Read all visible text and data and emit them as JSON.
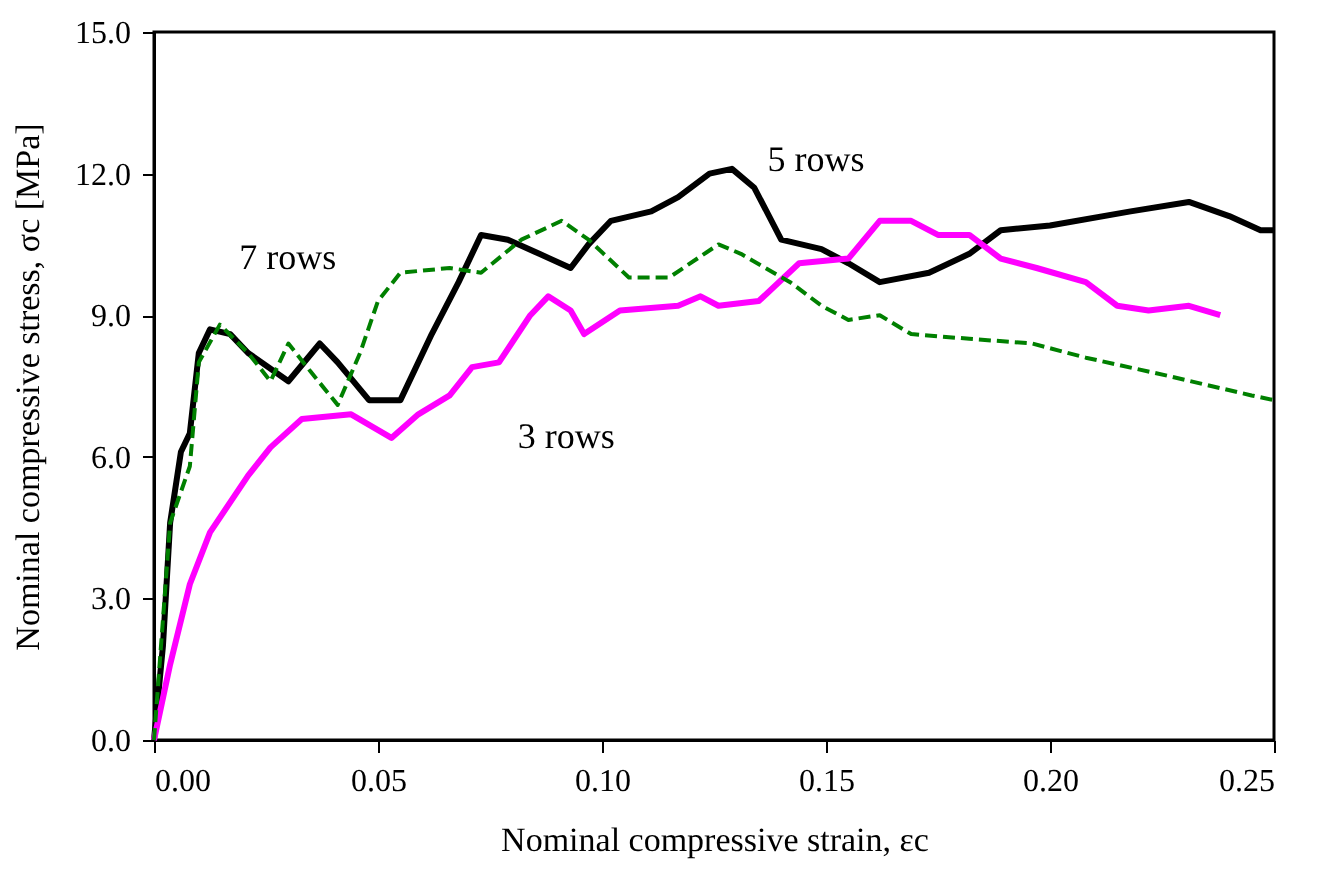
{
  "chart_data": {
    "type": "line",
    "xlabel": "Nominal compressive strain, εc",
    "ylabel": "Nominal compressive stress, σc [MPa]",
    "xlim": [
      0,
      0.25
    ],
    "ylim": [
      0,
      15
    ],
    "xticks": [
      {
        "value": 0,
        "label": "0.00"
      },
      {
        "value": 0.05,
        "label": "0.05"
      },
      {
        "value": 0.1,
        "label": "0.10"
      },
      {
        "value": 0.15,
        "label": "0.15"
      },
      {
        "value": 0.2,
        "label": "0.20"
      },
      {
        "value": 0.25,
        "label": "0.25"
      }
    ],
    "yticks": [
      {
        "value": 0,
        "label": "0.0"
      },
      {
        "value": 3,
        "label": "3.0"
      },
      {
        "value": 6,
        "label": "6.0"
      },
      {
        "value": 9,
        "label": "9.0"
      },
      {
        "value": 12,
        "label": "12.0"
      },
      {
        "value": 15,
        "label": "15.0"
      }
    ],
    "grid": false,
    "marker": "none",
    "series": [
      {
        "name": "5 rows",
        "color": "#000000",
        "line_style": "solid",
        "x": [
          0,
          0.002,
          0.0036,
          0.006,
          0.008,
          0.01,
          0.0125,
          0.017,
          0.021,
          0.03,
          0.037,
          0.041,
          0.048,
          0.055,
          0.062,
          0.068,
          0.073,
          0.079,
          0.086,
          0.093,
          0.097,
          0.102,
          0.111,
          0.117,
          0.124,
          0.129,
          0.134,
          0.14,
          0.149,
          0.155,
          0.162,
          0.173,
          0.182,
          0.189,
          0.2,
          0.218,
          0.231,
          0.24,
          0.247,
          0.25
        ],
        "values": [
          0,
          2.0,
          4.6,
          6.1,
          6.5,
          8.2,
          8.7,
          8.6,
          8.2,
          7.6,
          8.4,
          8.0,
          7.2,
          7.2,
          8.6,
          9.7,
          10.7,
          10.6,
          10.3,
          10.0,
          10.5,
          11.0,
          11.2,
          11.5,
          12.0,
          12.1,
          11.7,
          10.6,
          10.4,
          10.1,
          9.7,
          9.9,
          10.3,
          10.8,
          10.9,
          11.2,
          11.4,
          11.1,
          10.8,
          10.8
        ]
      },
      {
        "name": "3 rows",
        "color": "#ff00ff",
        "line_style": "solid",
        "x": [
          0,
          0.0036,
          0.008,
          0.0125,
          0.021,
          0.026,
          0.033,
          0.044,
          0.053,
          0.059,
          0.066,
          0.071,
          0.077,
          0.084,
          0.088,
          0.093,
          0.096,
          0.104,
          0.117,
          0.122,
          0.126,
          0.135,
          0.144,
          0.155,
          0.162,
          0.169,
          0.175,
          0.182,
          0.189,
          0.197,
          0.208,
          0.215,
          0.222,
          0.231,
          0.238
        ],
        "values": [
          0,
          1.6,
          3.3,
          4.4,
          5.6,
          6.2,
          6.8,
          6.9,
          6.4,
          6.9,
          7.3,
          7.9,
          8.0,
          9.0,
          9.4,
          9.1,
          8.6,
          9.1,
          9.2,
          9.4,
          9.2,
          9.3,
          10.1,
          10.2,
          11.0,
          11.0,
          10.7,
          10.7,
          10.2,
          10.0,
          9.7,
          9.2,
          9.1,
          9.2,
          9.0
        ]
      },
      {
        "name": "7 rows",
        "color": "#008000",
        "line_style": "dashed",
        "x": [
          0,
          0.0036,
          0.008,
          0.01,
          0.0147,
          0.021,
          0.026,
          0.03,
          0.035,
          0.041,
          0.046,
          0.05,
          0.055,
          0.066,
          0.073,
          0.082,
          0.091,
          0.097,
          0.106,
          0.115,
          0.126,
          0.131,
          0.142,
          0.149,
          0.155,
          0.162,
          0.169,
          0.182,
          0.196,
          0.208,
          0.227,
          0.245,
          0.25
        ],
        "values": [
          0,
          4.6,
          5.8,
          8.0,
          8.8,
          8.2,
          7.6,
          8.4,
          7.8,
          7.1,
          8.2,
          9.3,
          9.9,
          10.0,
          9.9,
          10.6,
          11.0,
          10.6,
          9.8,
          9.8,
          10.5,
          10.3,
          9.7,
          9.2,
          8.9,
          9.0,
          8.6,
          8.5,
          8.4,
          8.1,
          7.7,
          7.3,
          7.2
        ]
      }
    ]
  }
}
